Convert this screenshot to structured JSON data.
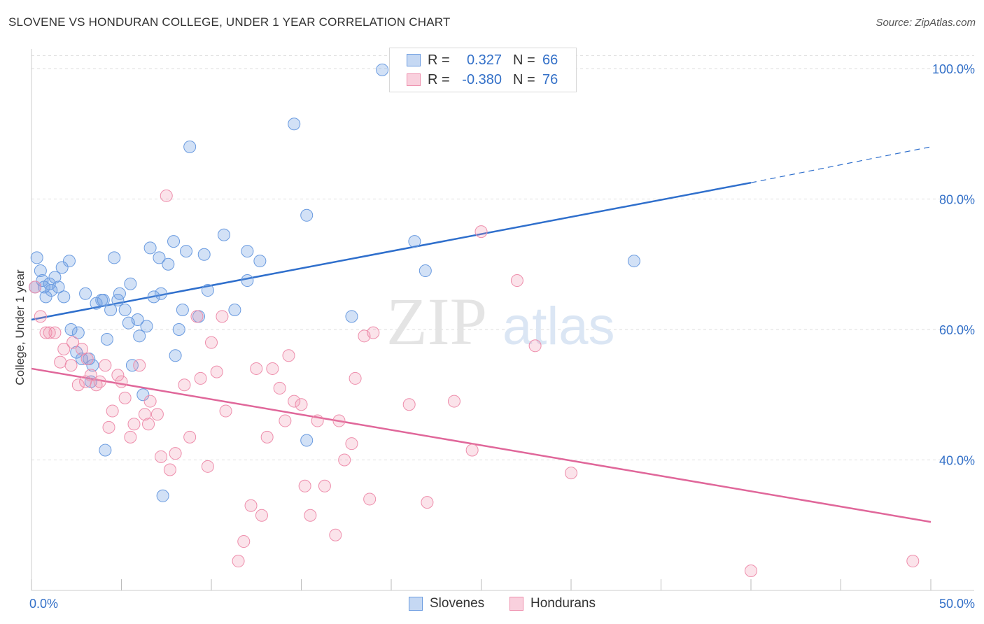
{
  "header": {
    "title": "SLOVENE VS HONDURAN COLLEGE, UNDER 1 YEAR CORRELATION CHART",
    "source": "Source: ZipAtlas.com"
  },
  "watermark": {
    "zip": "ZIP",
    "atlas": "atlas"
  },
  "legend": {
    "rows": [
      {
        "r_label": "R =",
        "r_value": "0.327",
        "n_label": "N =",
        "n_value": "66"
      },
      {
        "r_label": "R =",
        "r_value": "-0.380",
        "n_label": "N =",
        "n_value": "76"
      }
    ]
  },
  "bottom_legend": {
    "slovenes": "Slovenes",
    "hondurans": "Hondurans"
  },
  "chart_data": {
    "type": "scatter",
    "ylabel": "College, Under 1 year",
    "xlim": [
      0,
      50
    ],
    "ylim": [
      20,
      103
    ],
    "x_tick_labels": [
      "0.0%",
      "50.0%"
    ],
    "y_ticks": [
      40,
      60,
      80,
      100
    ],
    "y_tick_labels": [
      "40.0%",
      "60.0%",
      "80.0%",
      "100.0%"
    ],
    "grid": true,
    "colors": {
      "slovenes": "#6a9be0",
      "hondurans": "#ee8eac",
      "slovenes_line": "#2f6fcc",
      "hondurans_line": "#e0679a",
      "tick_label": "#3370c8"
    },
    "series": [
      {
        "name": "Slovenes",
        "trend": {
          "x1": 0,
          "y1": 61.5,
          "x2": 40,
          "y2": 82.5,
          "x_end": 50,
          "y_end": 88
        },
        "points": [
          [
            0.3,
            71
          ],
          [
            0.5,
            69
          ],
          [
            0.6,
            67.5
          ],
          [
            0.7,
            66.5
          ],
          [
            0.8,
            65
          ],
          [
            1.0,
            67
          ],
          [
            1.1,
            66
          ],
          [
            1.3,
            68
          ],
          [
            1.5,
            66.5
          ],
          [
            1.7,
            69.5
          ],
          [
            1.8,
            65
          ],
          [
            2.1,
            70.5
          ],
          [
            2.2,
            60
          ],
          [
            2.6,
            59.5
          ],
          [
            2.5,
            56.5
          ],
          [
            3.0,
            65.5
          ],
          [
            2.8,
            55.5
          ],
          [
            3.2,
            55.5
          ],
          [
            3.4,
            54.5
          ],
          [
            3.3,
            52
          ],
          [
            3.6,
            64
          ],
          [
            3.9,
            64.5
          ],
          [
            4.0,
            64.5
          ],
          [
            4.2,
            58.5
          ],
          [
            4.4,
            63
          ],
          [
            4.6,
            71
          ],
          [
            4.8,
            64.5
          ],
          [
            4.9,
            65.5
          ],
          [
            5.2,
            63
          ],
          [
            5.4,
            61
          ],
          [
            5.5,
            67
          ],
          [
            5.6,
            54.5
          ],
          [
            5.9,
            61.5
          ],
          [
            6.0,
            59
          ],
          [
            6.2,
            50
          ],
          [
            6.4,
            60.5
          ],
          [
            6.6,
            72.5
          ],
          [
            6.8,
            65
          ],
          [
            7.1,
            71
          ],
          [
            7.2,
            65.5
          ],
          [
            7.6,
            70
          ],
          [
            7.9,
            73.5
          ],
          [
            8.0,
            56
          ],
          [
            8.2,
            60
          ],
          [
            8.4,
            63
          ],
          [
            8.6,
            72
          ],
          [
            8.8,
            88
          ],
          [
            9.3,
            62
          ],
          [
            9.6,
            71.5
          ],
          [
            9.8,
            66
          ],
          [
            10.7,
            74.5
          ],
          [
            11.3,
            63
          ],
          [
            12.0,
            67.5
          ],
          [
            12.0,
            72
          ],
          [
            12.7,
            70.5
          ],
          [
            14.6,
            91.5
          ],
          [
            15.3,
            43
          ],
          [
            15.3,
            77.5
          ],
          [
            17.8,
            62
          ],
          [
            19.5,
            99.8
          ],
          [
            21.3,
            73.5
          ],
          [
            21.9,
            69
          ],
          [
            33.5,
            70.5
          ],
          [
            4.1,
            41.5
          ],
          [
            7.3,
            34.5
          ],
          [
            0.2,
            66.5
          ]
        ]
      },
      {
        "name": "Hondurans",
        "trend": {
          "x1": 0,
          "y1": 54,
          "x2": 50,
          "y2": 30.5
        },
        "points": [
          [
            0.2,
            66.5
          ],
          [
            0.5,
            62
          ],
          [
            1.0,
            59.5
          ],
          [
            1.3,
            59.5
          ],
          [
            1.8,
            57
          ],
          [
            1.6,
            55
          ],
          [
            2.2,
            54.5
          ],
          [
            2.3,
            58
          ],
          [
            2.6,
            51.5
          ],
          [
            2.8,
            57
          ],
          [
            3.0,
            52
          ],
          [
            3.1,
            55.5
          ],
          [
            3.3,
            53
          ],
          [
            3.6,
            51.5
          ],
          [
            3.8,
            52
          ],
          [
            4.1,
            54.5
          ],
          [
            4.3,
            45
          ],
          [
            4.5,
            47.5
          ],
          [
            4.8,
            53
          ],
          [
            5.0,
            52
          ],
          [
            5.2,
            49.5
          ],
          [
            5.5,
            43.5
          ],
          [
            5.7,
            45.5
          ],
          [
            6.0,
            54.5
          ],
          [
            6.3,
            47
          ],
          [
            6.5,
            45.5
          ],
          [
            6.6,
            49
          ],
          [
            7.0,
            47
          ],
          [
            7.2,
            40.5
          ],
          [
            7.5,
            80.5
          ],
          [
            7.7,
            38.5
          ],
          [
            8.0,
            41
          ],
          [
            8.5,
            51.5
          ],
          [
            8.8,
            43.5
          ],
          [
            9.2,
            62
          ],
          [
            9.4,
            52.5
          ],
          [
            9.8,
            39
          ],
          [
            10.0,
            58
          ],
          [
            10.3,
            53.5
          ],
          [
            10.6,
            62
          ],
          [
            10.8,
            47.5
          ],
          [
            11.5,
            24.5
          ],
          [
            11.8,
            27.5
          ],
          [
            12.2,
            33
          ],
          [
            12.5,
            54
          ],
          [
            12.8,
            31.5
          ],
          [
            13.1,
            43.5
          ],
          [
            13.4,
            54
          ],
          [
            13.8,
            51
          ],
          [
            14.1,
            46
          ],
          [
            14.3,
            56
          ],
          [
            14.6,
            49
          ],
          [
            15.0,
            48.5
          ],
          [
            15.2,
            36
          ],
          [
            15.5,
            31.5
          ],
          [
            15.9,
            46
          ],
          [
            16.3,
            36
          ],
          [
            16.9,
            28.5
          ],
          [
            17.1,
            46
          ],
          [
            17.4,
            40
          ],
          [
            17.8,
            42.5
          ],
          [
            18.0,
            52.5
          ],
          [
            18.5,
            59
          ],
          [
            18.8,
            34
          ],
          [
            19.0,
            59.5
          ],
          [
            21.0,
            48.5
          ],
          [
            22.0,
            33.5
          ],
          [
            23.5,
            49
          ],
          [
            24.5,
            41.5
          ],
          [
            25.0,
            75
          ],
          [
            27.0,
            67.5
          ],
          [
            28.0,
            57.5
          ],
          [
            30.0,
            38
          ],
          [
            40.0,
            23
          ],
          [
            49.0,
            24.5
          ],
          [
            0.8,
            59.5
          ]
        ]
      }
    ]
  }
}
